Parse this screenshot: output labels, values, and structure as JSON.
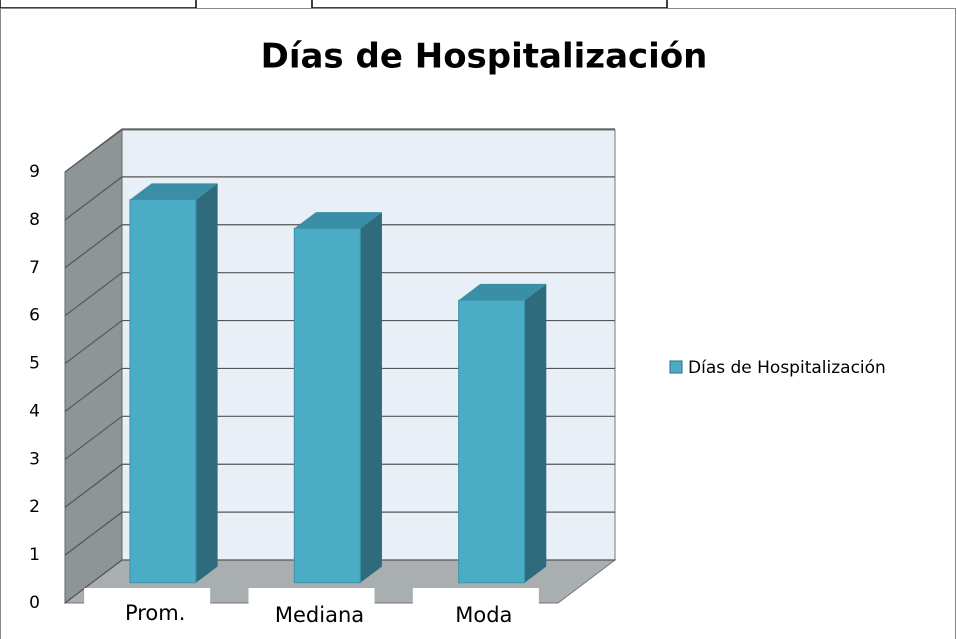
{
  "chart_data": {
    "type": "bar3d",
    "title": "Días de Hospitalización",
    "categories": [
      "Prom.",
      "Mediana",
      "Moda"
    ],
    "series": [
      {
        "name": "Días de Hospitalización",
        "color": "#4bacc6",
        "values": [
          8.0,
          7.4,
          5.9
        ]
      }
    ],
    "ylim": [
      0,
      9
    ],
    "yticks": [
      0,
      1,
      2,
      3,
      4,
      5,
      6,
      7,
      8,
      9
    ],
    "grid": true,
    "legend": "right"
  }
}
